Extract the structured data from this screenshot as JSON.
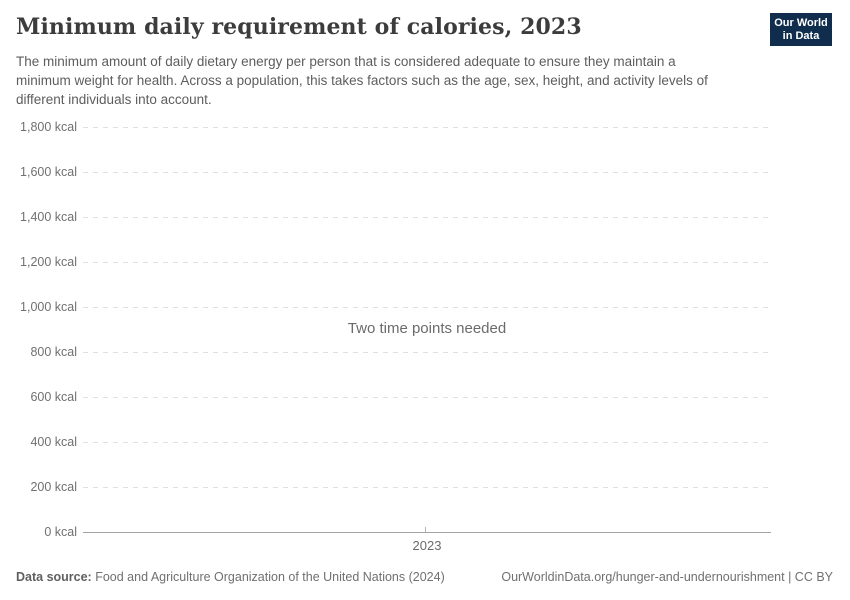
{
  "header": {
    "title": "Minimum daily requirement of calories, 2023",
    "subtitle": "The minimum amount of daily dietary energy per person that is considered adequate to ensure they maintain a minimum weight for health. Across a population, this takes factors such as the age, sex, height, and activity levels of different individuals into account.",
    "logo_line1": "Our World",
    "logo_line2": "in Data"
  },
  "chart_data": {
    "type": "line",
    "title": "Minimum daily requirement of calories, 2023",
    "unit": "kcal",
    "x": [
      "2023"
    ],
    "x_tick_label": "2023",
    "series": [],
    "empty_message": "Two time points needed",
    "ylim": [
      0,
      1800
    ],
    "ytick_step": 200,
    "ytick_labels": [
      "1,800 kcal",
      "1,600 kcal",
      "1,400 kcal",
      "1,200 kcal",
      "1,000 kcal",
      "800 kcal",
      "600 kcal",
      "400 kcal",
      "200 kcal",
      "0 kcal"
    ],
    "grid": "horizontal-dashed",
    "legend": "none"
  },
  "footer": {
    "datasource_label": "Data source:",
    "datasource_value": "Food and Agriculture Organization of the United Nations (2024)",
    "link": "OurWorldinData.org/hunger-and-undernourishment | CC BY"
  },
  "colors": {
    "logo_navy": "#102d4e",
    "logo_red": "#d0342c",
    "title_text": "#3c3c3c",
    "subtitle_text": "#5d5d5d",
    "axis_label": "#707070",
    "gridline": "#e0e0e0",
    "axis_line": "#a3a3a3",
    "background": "#ffffff"
  }
}
